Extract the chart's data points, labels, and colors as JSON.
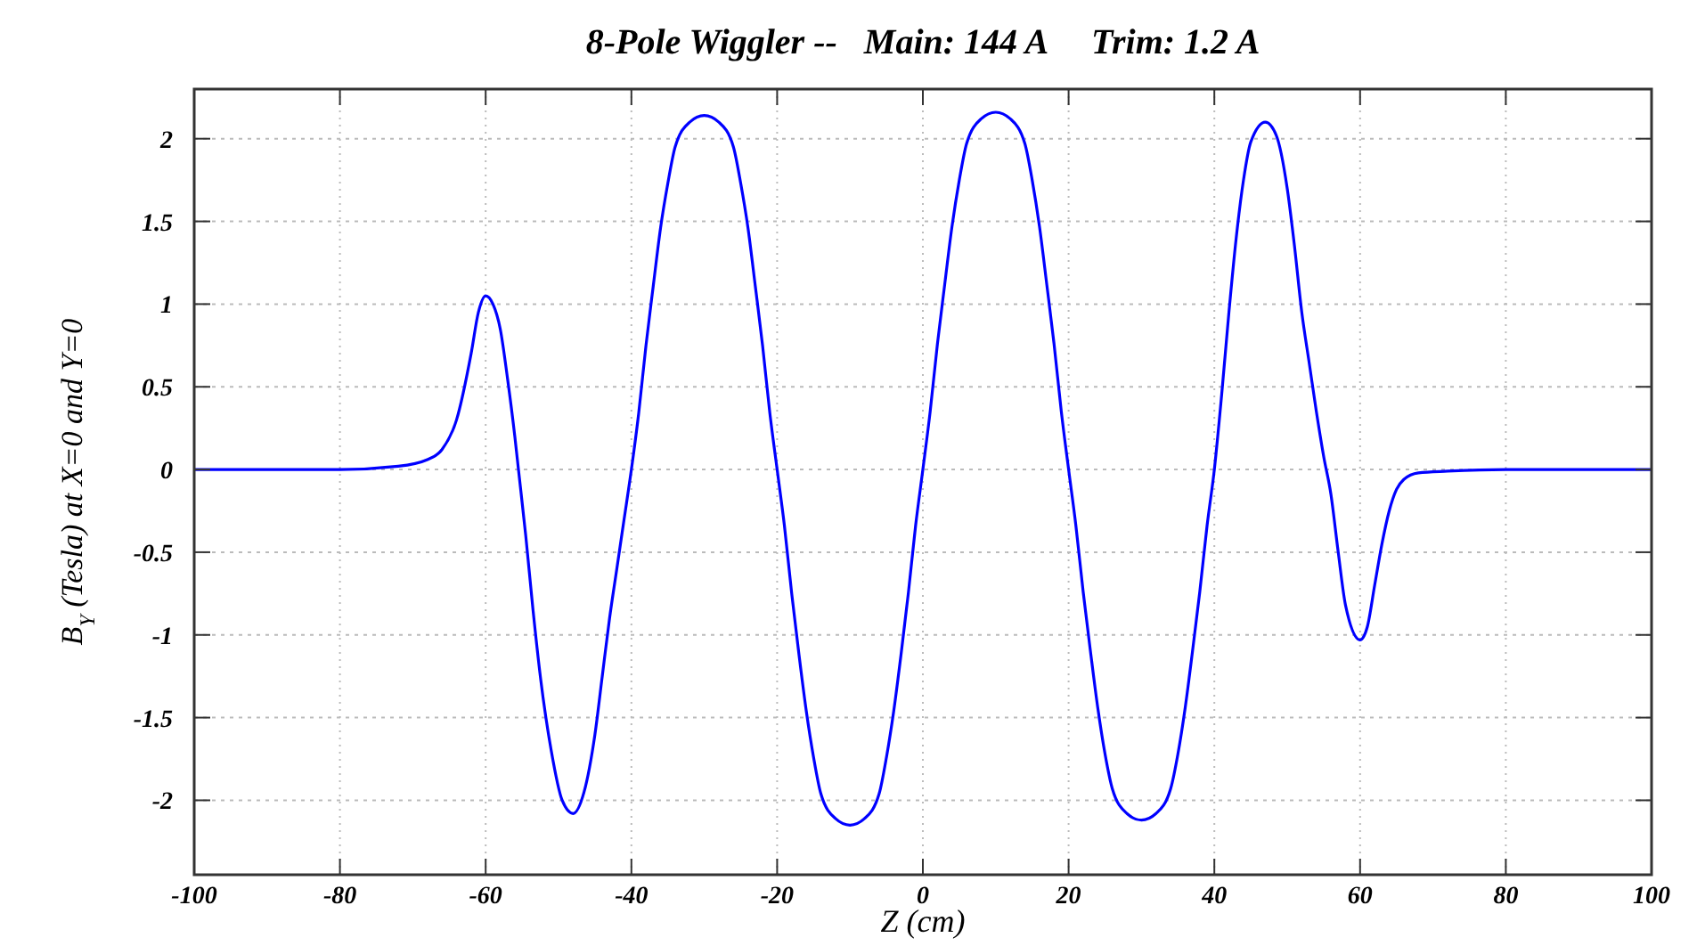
{
  "chart_data": {
    "type": "line",
    "title": "8-Pole Wiggler --   Main: 144 A     Trim: 1.2 A",
    "xlabel": "Z (cm)",
    "ylabel": "B$_{Y}$ (Tesla) at X=0 and Y=0",
    "xlim": [
      -100,
      100
    ],
    "xticks": [
      -100,
      -80,
      -60,
      -40,
      -20,
      0,
      20,
      40,
      60,
      80,
      100
    ],
    "ylim": [
      -2.45,
      2.3
    ],
    "yticks": [
      -2,
      -1.5,
      -1,
      -0.5,
      0,
      0.5,
      1,
      1.5,
      2
    ],
    "grid": true,
    "marker": "none",
    "line_style": "solid",
    "series": [
      {
        "color": "#0000ff",
        "x": [
          -100,
          -80,
          -72,
          -68,
          -66,
          -64,
          -62,
          -61,
          -60,
          -59,
          -58,
          -57,
          -56,
          -55.5,
          -54.5,
          -53.5,
          -52.5,
          -51,
          -49.5,
          -48,
          -46.5,
          -45,
          -44,
          -43,
          -42,
          -41,
          -40,
          -39,
          -38,
          -37,
          -36,
          -35,
          -34,
          -32,
          -30,
          -28,
          -26,
          -25,
          -24,
          -23,
          -22,
          -21,
          -20,
          -19,
          -18,
          -17,
          -16,
          -15,
          -14,
          -12,
          -10,
          -8,
          -6,
          -5,
          -4,
          -3,
          -2,
          -1,
          0,
          1,
          2,
          3,
          4,
          5,
          6,
          8,
          10,
          12,
          14,
          15,
          16,
          17,
          18,
          19,
          20,
          21,
          22,
          23,
          24,
          25,
          26,
          28,
          30,
          32,
          34,
          35,
          36,
          37,
          38,
          39,
          40,
          41,
          42,
          43,
          44,
          45,
          47,
          48.5,
          50,
          51,
          52,
          53,
          54,
          55,
          56,
          57,
          58,
          60,
          61,
          62,
          63,
          64,
          65,
          66,
          68,
          72,
          80,
          100
        ],
        "values": [
          0,
          0,
          0.02,
          0.06,
          0.12,
          0.3,
          0.7,
          0.95,
          1.05,
          1.0,
          0.85,
          0.55,
          0.2,
          0,
          -0.4,
          -0.85,
          -1.25,
          -1.7,
          -2.0,
          -2.08,
          -1.95,
          -1.6,
          -1.25,
          -0.9,
          -0.6,
          -0.3,
          0,
          0.34,
          0.75,
          1.11,
          1.46,
          1.73,
          1.95,
          2.1,
          2.14,
          2.1,
          1.95,
          1.73,
          1.46,
          1.11,
          0.75,
          0.34,
          0,
          -0.34,
          -0.75,
          -1.12,
          -1.46,
          -1.74,
          -1.96,
          -2.11,
          -2.15,
          -2.11,
          -1.96,
          -1.74,
          -1.46,
          -1.12,
          -0.75,
          -0.34,
          0,
          0.35,
          0.76,
          1.12,
          1.47,
          1.75,
          1.97,
          2.12,
          2.16,
          2.12,
          1.97,
          1.75,
          1.47,
          1.12,
          0.76,
          0.35,
          0,
          -0.34,
          -0.74,
          -1.1,
          -1.44,
          -1.72,
          -1.93,
          -2.08,
          -2.12,
          -2.08,
          -1.93,
          -1.72,
          -1.44,
          -1.1,
          -0.74,
          -0.34,
          0,
          0.45,
          0.95,
          1.4,
          1.75,
          1.98,
          2.1,
          2.02,
          1.7,
          1.35,
          0.95,
          0.65,
          0.35,
          0.08,
          -0.15,
          -0.5,
          -0.82,
          -1.03,
          -0.95,
          -0.7,
          -0.45,
          -0.25,
          -0.12,
          -0.06,
          -0.02,
          -0.01,
          0,
          0
        ]
      }
    ]
  }
}
